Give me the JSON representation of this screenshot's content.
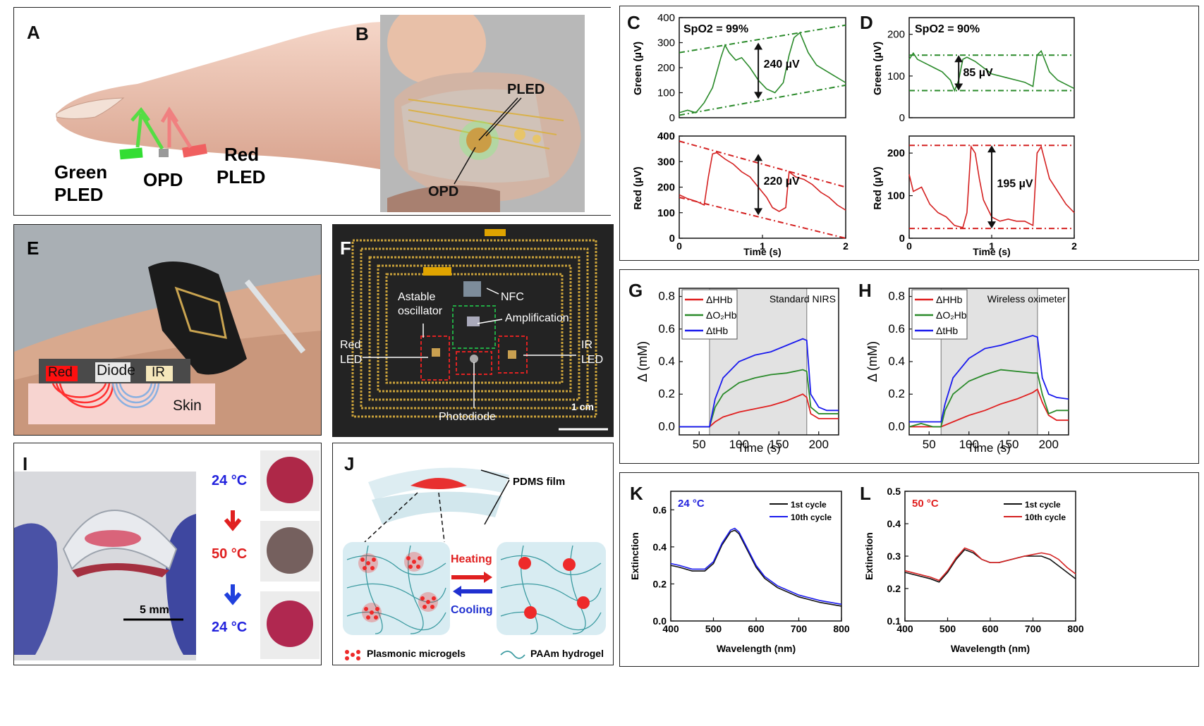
{
  "panels": {
    "A": {
      "label": "A",
      "green": "Green",
      "pled1": "PLED",
      "opd": "OPD",
      "red": "Red",
      "pled2": "PLED"
    },
    "B": {
      "label": "B",
      "pled": "PLED",
      "opd": "OPD"
    },
    "C": {
      "label": "C",
      "spo2_text": "SpO2 = 99%",
      "green_ylabel": "Green (µV)",
      "red_ylabel": "Red (µV)",
      "xlabel": "Time (s)",
      "green_amp": "240 µV",
      "red_amp": "220 µV",
      "yticks": [
        "0",
        "100",
        "200",
        "300",
        "400"
      ],
      "xticks": [
        "0",
        "1",
        "2"
      ]
    },
    "D": {
      "label": "D",
      "spo2_text": "SpO2 = 90%",
      "green_ylabel": "Green (µV)",
      "red_ylabel": "Red (µV)",
      "xlabel": "Time (s)",
      "green_amp": "85 µV",
      "red_amp": "195 µV",
      "yticks": [
        "0",
        "100",
        "200"
      ],
      "xticks": [
        "0",
        "1",
        "2"
      ]
    },
    "E": {
      "label": "E",
      "red": "Red",
      "diode": "Diode",
      "ir": "IR",
      "skin": "Skin"
    },
    "F": {
      "label": "F",
      "astable": "Astable",
      "oscillator": "oscillator",
      "nfc": "NFC",
      "amplification": "Amplification",
      "red_led_1": "Red",
      "red_led_2": "LED",
      "ir_led_1": "IR",
      "ir_led_2": "LED",
      "photodiode": "Photodiode",
      "scale": "1 cm"
    },
    "G": {
      "label": "G",
      "title": "Standard NIRS",
      "ylabel": "Δ (mM)",
      "xlabel": "Time (s)",
      "legend": [
        "ΔHHb",
        "ΔO₂Hb",
        "ΔtHb"
      ],
      "yticks": [
        "0.0",
        "0.2",
        "0.4",
        "0.6",
        "0.8"
      ],
      "xticks": [
        "50",
        "100",
        "150",
        "200"
      ]
    },
    "H": {
      "label": "H",
      "title": "Wireless oximeter",
      "ylabel": "Δ (mM)",
      "xlabel": "Time (s)",
      "legend": [
        "ΔHHb",
        "ΔO₂Hb",
        "ΔtHb"
      ],
      "yticks": [
        "0.0",
        "0.2",
        "0.4",
        "0.6",
        "0.8"
      ],
      "xticks": [
        "50",
        "100",
        "150",
        "200"
      ]
    },
    "I": {
      "label": "I",
      "t1": "24 °C",
      "t2": "50 °C",
      "t3": "24 °C",
      "scale": "5 mm"
    },
    "J": {
      "label": "J",
      "pdms": "PDMS film",
      "heating": "Heating",
      "cooling": "Cooling",
      "legend1": "Plasmonic microgels",
      "legend2": "PAAm hydrogel"
    },
    "K": {
      "label": "K",
      "temp": "24 °C",
      "ylabel": "Extinction",
      "xlabel": "Wavelength (nm)",
      "legend": [
        "1st cycle",
        "10th cycle"
      ],
      "yticks": [
        "0.0",
        "0.2",
        "0.4",
        "0.6"
      ],
      "xticks": [
        "400",
        "500",
        "600",
        "700",
        "800"
      ]
    },
    "L": {
      "label": "L",
      "temp": "50 °C",
      "ylabel": "Extinction",
      "xlabel": "Wavelength (nm)",
      "legend": [
        "1st cycle",
        "10th cycle"
      ],
      "yticks": [
        "0.1",
        "0.2",
        "0.3",
        "0.4",
        "0.5"
      ],
      "xticks": [
        "400",
        "500",
        "600",
        "700",
        "800"
      ]
    }
  },
  "colors": {
    "green": "#2a8a2a",
    "red": "#d42020",
    "blue": "#1a1aee",
    "black": "#111111"
  },
  "chart_data": [
    {
      "id": "C-green",
      "type": "line",
      "xlim": [
        0,
        2
      ],
      "ylim": [
        0,
        400
      ],
      "ylabel": "Green (µV)",
      "series": [
        {
          "x": [
            0,
            0.1,
            0.2,
            0.3,
            0.4,
            0.5,
            0.55,
            0.6,
            0.68,
            0.75,
            0.85,
            0.95,
            1.05,
            1.15,
            1.25,
            1.32,
            1.38,
            1.45,
            1.55,
            1.65,
            1.75,
            1.85,
            1.95,
            2.0
          ],
          "y": [
            20,
            30,
            20,
            60,
            120,
            240,
            290,
            260,
            230,
            240,
            200,
            150,
            115,
            100,
            140,
            250,
            320,
            340,
            260,
            210,
            190,
            170,
            150,
            140
          ]
        }
      ]
    },
    {
      "id": "C-red",
      "type": "line",
      "xlim": [
        0,
        2
      ],
      "ylim": [
        0,
        400
      ],
      "ylabel": "Red (µV)",
      "series": [
        {
          "x": [
            0,
            0.1,
            0.2,
            0.3,
            0.35,
            0.4,
            0.45,
            0.55,
            0.65,
            0.75,
            0.85,
            0.95,
            1.05,
            1.12,
            1.2,
            1.28,
            1.32,
            1.4,
            1.5,
            1.6,
            1.7,
            1.8,
            1.9,
            2.0
          ],
          "y": [
            170,
            155,
            145,
            130,
            240,
            330,
            335,
            310,
            290,
            260,
            240,
            200,
            160,
            120,
            105,
            120,
            260,
            240,
            230,
            210,
            180,
            160,
            130,
            110
          ]
        }
      ]
    },
    {
      "id": "D-green",
      "type": "line",
      "xlim": [
        0,
        2
      ],
      "ylim": [
        0,
        240
      ],
      "series": [
        {
          "x": [
            0,
            0.05,
            0.1,
            0.2,
            0.3,
            0.4,
            0.5,
            0.55,
            0.6,
            0.65,
            0.7,
            0.8,
            0.9,
            1.0,
            1.1,
            1.2,
            1.3,
            1.4,
            1.5,
            1.55,
            1.6,
            1.7,
            1.8,
            1.9,
            2.0
          ],
          "y": [
            140,
            155,
            140,
            130,
            120,
            110,
            90,
            65,
            90,
            140,
            145,
            135,
            120,
            105,
            100,
            95,
            90,
            85,
            75,
            150,
            160,
            110,
            90,
            80,
            70
          ]
        }
      ]
    },
    {
      "id": "D-red",
      "type": "line",
      "xlim": [
        0,
        2
      ],
      "ylim": [
        0,
        240
      ],
      "series": [
        {
          "x": [
            0,
            0.05,
            0.15,
            0.25,
            0.35,
            0.45,
            0.55,
            0.65,
            0.7,
            0.75,
            0.8,
            0.85,
            0.9,
            1.0,
            1.1,
            1.2,
            1.3,
            1.4,
            1.5,
            1.55,
            1.6,
            1.7,
            1.8,
            1.9,
            2.0
          ],
          "y": [
            150,
            110,
            120,
            80,
            60,
            50,
            30,
            25,
            60,
            215,
            200,
            140,
            90,
            50,
            40,
            45,
            40,
            40,
            30,
            200,
            215,
            140,
            110,
            80,
            60
          ]
        }
      ]
    },
    {
      "id": "G",
      "type": "line",
      "xlim": [
        25,
        225
      ],
      "ylim": [
        -0.05,
        0.85
      ],
      "shaded": [
        63,
        185
      ],
      "series": [
        {
          "name": "ΔHHb",
          "color": "#e02020",
          "x": [
            25,
            40,
            55,
            63,
            70,
            80,
            100,
            120,
            140,
            160,
            180,
            185,
            190,
            200,
            210,
            225
          ],
          "y": [
            0.0,
            0.0,
            0.0,
            0.0,
            0.03,
            0.06,
            0.09,
            0.11,
            0.13,
            0.16,
            0.2,
            0.18,
            0.08,
            0.05,
            0.05,
            0.05
          ]
        },
        {
          "name": "ΔO₂Hb",
          "color": "#2a8a2a",
          "x": [
            25,
            40,
            55,
            63,
            70,
            80,
            100,
            120,
            140,
            160,
            180,
            185,
            190,
            200,
            210,
            225
          ],
          "y": [
            0.0,
            0.0,
            0.0,
            0.0,
            0.12,
            0.2,
            0.27,
            0.3,
            0.32,
            0.33,
            0.35,
            0.34,
            0.12,
            0.08,
            0.08,
            0.08
          ]
        },
        {
          "name": "ΔtHb",
          "color": "#1a1aee",
          "x": [
            25,
            40,
            55,
            63,
            70,
            80,
            100,
            120,
            140,
            160,
            180,
            185,
            190,
            200,
            210,
            225
          ],
          "y": [
            0.0,
            0.0,
            0.0,
            0.0,
            0.17,
            0.3,
            0.4,
            0.44,
            0.46,
            0.5,
            0.54,
            0.53,
            0.2,
            0.12,
            0.1,
            0.1
          ]
        }
      ]
    },
    {
      "id": "H",
      "type": "line",
      "xlim": [
        25,
        225
      ],
      "ylim": [
        -0.05,
        0.85
      ],
      "shaded": [
        65,
        186
      ],
      "series": [
        {
          "name": "ΔHHb",
          "color": "#e02020",
          "x": [
            25,
            40,
            55,
            65,
            80,
            100,
            120,
            140,
            160,
            180,
            186,
            192,
            200,
            210,
            225
          ],
          "y": [
            0.0,
            0.0,
            0.0,
            0.0,
            0.03,
            0.07,
            0.1,
            0.14,
            0.17,
            0.21,
            0.23,
            0.15,
            0.07,
            0.04,
            0.04
          ]
        },
        {
          "name": "ΔO₂Hb",
          "color": "#2a8a2a",
          "x": [
            25,
            40,
            55,
            65,
            70,
            80,
            100,
            120,
            140,
            160,
            180,
            186,
            192,
            200,
            210,
            225
          ],
          "y": [
            0.0,
            0.02,
            0.0,
            0.0,
            0.1,
            0.2,
            0.28,
            0.32,
            0.35,
            0.34,
            0.33,
            0.33,
            0.2,
            0.08,
            0.1,
            0.1
          ]
        },
        {
          "name": "ΔtHb",
          "color": "#1a1aee",
          "x": [
            25,
            40,
            55,
            65,
            70,
            80,
            100,
            120,
            140,
            160,
            180,
            186,
            192,
            200,
            210,
            225
          ],
          "y": [
            0.03,
            0.03,
            0.03,
            0.03,
            0.14,
            0.3,
            0.42,
            0.48,
            0.5,
            0.53,
            0.56,
            0.55,
            0.3,
            0.2,
            0.18,
            0.17
          ]
        }
      ]
    },
    {
      "id": "K",
      "type": "line",
      "xlim": [
        400,
        800
      ],
      "ylim": [
        0,
        0.7
      ],
      "series": [
        {
          "name": "1st cycle",
          "color": "#111111",
          "x": [
            400,
            420,
            450,
            480,
            500,
            520,
            540,
            550,
            560,
            580,
            600,
            620,
            650,
            700,
            750,
            800
          ],
          "y": [
            0.3,
            0.29,
            0.27,
            0.27,
            0.31,
            0.41,
            0.48,
            0.49,
            0.47,
            0.38,
            0.29,
            0.23,
            0.18,
            0.13,
            0.1,
            0.08
          ]
        },
        {
          "name": "10th cycle",
          "color": "#1a1aee",
          "x": [
            400,
            420,
            450,
            480,
            500,
            520,
            540,
            550,
            560,
            580,
            600,
            620,
            650,
            700,
            750,
            800
          ],
          "y": [
            0.31,
            0.3,
            0.28,
            0.28,
            0.32,
            0.42,
            0.49,
            0.5,
            0.48,
            0.39,
            0.3,
            0.24,
            0.19,
            0.14,
            0.11,
            0.09
          ]
        }
      ]
    },
    {
      "id": "L",
      "type": "line",
      "xlim": [
        400,
        800
      ],
      "ylim": [
        0.1,
        0.5
      ],
      "series": [
        {
          "name": "1st cycle",
          "color": "#111111",
          "x": [
            400,
            430,
            460,
            480,
            500,
            520,
            540,
            560,
            580,
            600,
            620,
            650,
            680,
            700,
            720,
            740,
            760,
            780,
            800
          ],
          "y": [
            0.25,
            0.24,
            0.23,
            0.22,
            0.25,
            0.29,
            0.32,
            0.31,
            0.29,
            0.28,
            0.28,
            0.29,
            0.3,
            0.3,
            0.3,
            0.29,
            0.27,
            0.25,
            0.23
          ]
        },
        {
          "name": "10th cycle",
          "color": "#d42020",
          "x": [
            400,
            430,
            460,
            480,
            500,
            520,
            540,
            560,
            580,
            600,
            620,
            650,
            680,
            700,
            720,
            740,
            760,
            780,
            800
          ],
          "y": [
            0.255,
            0.245,
            0.235,
            0.225,
            0.255,
            0.295,
            0.325,
            0.315,
            0.29,
            0.28,
            0.28,
            0.29,
            0.3,
            0.305,
            0.31,
            0.305,
            0.29,
            0.265,
            0.245
          ]
        }
      ]
    }
  ]
}
